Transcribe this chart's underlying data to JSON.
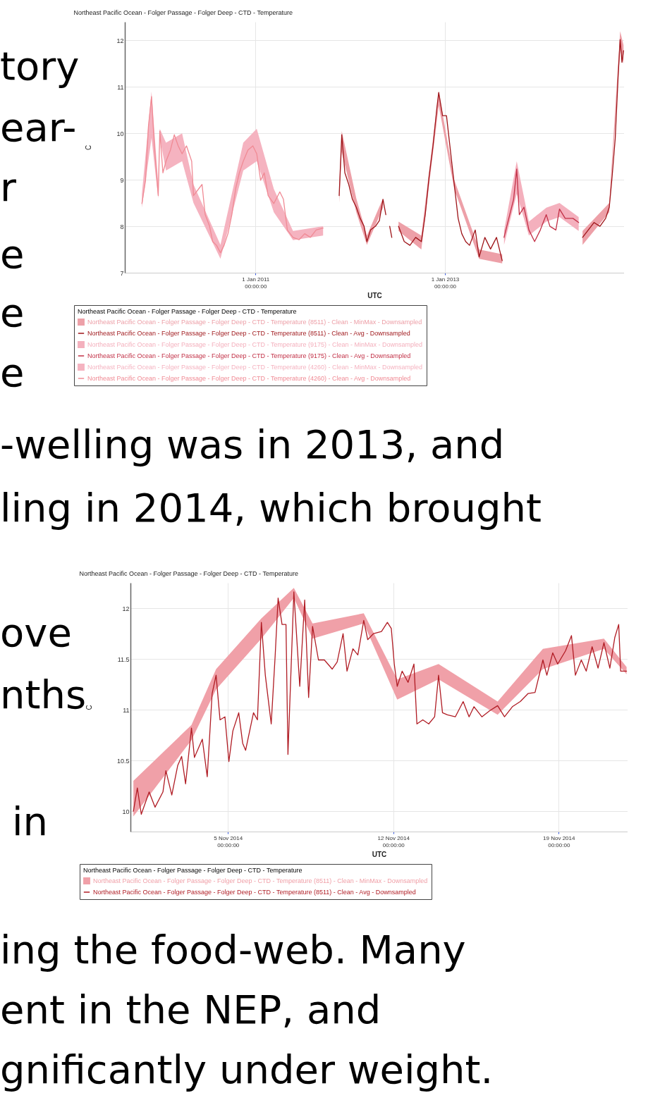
{
  "chart_data": [
    {
      "type": "line",
      "title": "Northeast Pacific Ocean - Folger Passage - Folger Deep - CTD - Temperature",
      "xlabel": "UTC",
      "ylabel": "C",
      "legend_title": "Northeast Pacific Ocean - Folger Passage - Folger Deep - CTD - Temperature",
      "xlim": [
        "2009-08-15",
        "2014-11-23"
      ],
      "xticks": [
        {
          "value": "2011-01-01",
          "label": "1 Jan 2011\n00:00:00"
        },
        {
          "value": "2013-01-01",
          "label": "1 Jan 2013\n00:00:00"
        }
      ],
      "ylim": [
        7,
        12.4
      ],
      "yticks": [
        7,
        8,
        9,
        10,
        11,
        12
      ],
      "grid": true,
      "legend": "bottom",
      "annotations": [
        "tory",
        "ear-",
        "r",
        "e",
        "e",
        "e",
        "-welling was in 2013, and",
        "ling in 2014, which brought"
      ],
      "series": [
        {
          "name": "Northeast Pacific Ocean - Folger Passage - Folger Deep - CTD - Temperature (8511) - Clean - MinMax - Downsampled",
          "type": "area",
          "color": "#eda0a8",
          "x": [
            "2011-11-20",
            "2011-11-30",
            "2012-01-25",
            "2012-03-06",
            "2012-05-07",
            "2012-05-25",
            "2012-07-06",
            "2012-10-02",
            "2012-12-08",
            "2013-02-06",
            "2013-05-13",
            "2013-08-10",
            "2013-08-14",
            "2014-06-16",
            "2014-09-27",
            "2014-11-08",
            "2014-11-21"
          ],
          "values": [
            null,
            null,
            null,
            null,
            null,
            null,
            null,
            null,
            null,
            null,
            null,
            null,
            null,
            null,
            null,
            null,
            null
          ],
          "upper": [
            8.8,
            10.05,
            8.6,
            7.8,
            8.6,
            null,
            8.1,
            7.8,
            10.9,
            9.0,
            7.5,
            7.4,
            null,
            7.9,
            8.5,
            12.2,
            11.9
          ],
          "lower": [
            8.5,
            9.6,
            8.3,
            7.6,
            8.4,
            null,
            7.9,
            7.5,
            10.6,
            8.8,
            7.3,
            7.2,
            null,
            7.6,
            8.3,
            11.8,
            11.5
          ]
        },
        {
          "name": "Northeast Pacific Ocean - Folger Passage - Folger Deep - CTD - Temperature (8511) - Clean - Avg - Downsampled",
          "type": "line",
          "color": "#9e1418",
          "x": [
            "2011-11-20",
            "2011-11-30",
            "2011-12-12",
            "2011-12-27",
            "2012-01-10",
            "2012-01-25",
            "2012-02-09",
            "2012-02-24",
            "2012-03-06",
            "2012-03-20",
            "2012-04-08",
            "2012-04-23",
            "2012-05-07",
            "2012-05-18",
            "2012-05-25",
            "2012-06-02",
            "2012-06-10",
            "2012-06-20",
            "2012-07-06",
            "2012-07-28",
            "2012-08-19",
            "2012-09-10",
            "2012-10-02",
            "2012-10-17",
            "2012-11-01",
            "2012-11-16",
            "2012-12-01",
            "2012-12-08",
            "2012-12-23",
            "2013-01-07",
            "2013-01-22",
            "2013-02-06",
            "2013-02-21",
            "2013-03-07",
            "2013-03-22",
            "2013-04-06",
            "2013-04-28",
            "2013-05-13",
            "2013-06-04",
            "2013-06-26",
            "2013-07-19",
            "2013-08-10",
            "2013-08-14",
            "2014-06-16",
            "2014-07-08",
            "2014-07-30",
            "2014-08-22",
            "2014-09-13",
            "2014-09-27",
            "2014-10-08",
            "2014-10-20",
            "2014-10-31",
            "2014-11-08",
            "2014-11-15",
            "2014-11-21"
          ],
          "values": [
            8.66,
            9.97,
            9.15,
            8.9,
            8.58,
            8.41,
            8.17,
            8.0,
            7.67,
            7.92,
            8.0,
            8.12,
            8.58,
            8.25,
            null,
            8.0,
            7.76,
            null,
            8.0,
            7.67,
            7.59,
            7.76,
            7.67,
            8.25,
            9.07,
            9.73,
            10.55,
            10.88,
            10.38,
            10.38,
            9.64,
            8.9,
            8.17,
            7.84,
            7.67,
            7.59,
            7.92,
            7.34,
            7.76,
            7.51,
            7.76,
            7.26,
            null,
            7.76,
            7.92,
            8.08,
            8.0,
            8.17,
            8.41,
            9.07,
            9.89,
            11.2,
            12.02,
            11.53,
            11.78
          ]
        },
        {
          "name": "Northeast Pacific Ocean - Folger Passage - Folger Deep - CTD - Temperature (9175) - Clean - MinMax - Downsampled",
          "type": "area",
          "color": "#f4b0bd",
          "x": [
            "2013-08-17",
            "2013-10-05",
            "2013-11-21",
            "2014-01-27",
            "2014-03-19",
            "2014-06-01"
          ],
          "values": [
            null,
            null,
            null,
            null,
            null,
            null
          ],
          "upper": [
            7.9,
            9.4,
            8.1,
            8.4,
            8.5,
            8.2
          ],
          "lower": [
            7.6,
            8.7,
            7.8,
            8.1,
            8.2,
            7.9
          ]
        },
        {
          "name": "Northeast Pacific Ocean - Folger Passage - Folger Deep - CTD - Temperature (9175) - Clean - Avg - Downsampled",
          "type": "line",
          "color": "#c23046",
          "x": [
            "2013-08-17",
            "2013-09-08",
            "2013-09-23",
            "2013-10-05",
            "2013-10-15",
            "2013-11-02",
            "2013-11-21",
            "2013-12-13",
            "2014-01-04",
            "2014-01-27",
            "2014-02-10",
            "2014-03-05",
            "2014-03-19",
            "2014-04-10",
            "2014-05-10",
            "2014-06-01"
          ],
          "values": [
            7.76,
            8.25,
            8.58,
            9.23,
            8.25,
            8.41,
            7.92,
            7.67,
            7.92,
            8.25,
            8.0,
            7.92,
            8.37,
            8.17,
            8.17,
            8.08
          ]
        },
        {
          "name": "Northeast Pacific Ocean - Folger Passage - Folger Deep - CTD - Temperature (4260) - Clean - MinMax - Downsampled",
          "type": "area",
          "color": "#f5b3c0",
          "x": [
            "2009-10-20",
            "2009-11-26",
            "2009-12-22",
            "2009-12-28",
            "2010-01-21",
            "2010-03-24",
            "2010-05-07",
            "2010-08-19",
            "2010-11-15",
            "2011-01-06",
            "2011-03-13",
            "2011-05-26",
            "2011-09-19"
          ],
          "values": [
            null,
            null,
            null,
            null,
            null,
            null,
            null,
            null,
            null,
            null,
            null,
            null,
            null
          ],
          "upper": [
            8.7,
            10.9,
            8.9,
            10.1,
            9.8,
            10.0,
            8.9,
            7.6,
            9.8,
            10.1,
            8.8,
            7.9,
            8.0
          ],
          "lower": [
            8.4,
            9.9,
            8.6,
            9.9,
            9.2,
            9.4,
            8.5,
            7.3,
            9.2,
            9.4,
            8.3,
            7.7,
            7.8
          ]
        },
        {
          "name": "Northeast Pacific Ocean - Folger Passage - Folger Deep - CTD - Temperature (4260) - Clean - Avg - Downsampled",
          "type": "line",
          "color": "#f08a94",
          "x": [
            "2009-10-20",
            "2009-11-03",
            "2009-11-14",
            "2009-11-26",
            "2009-12-07",
            "2009-12-22",
            "2009-12-28",
            "2010-01-09",
            "2010-01-21",
            "2010-02-07",
            "2010-02-22",
            "2010-03-09",
            "2010-03-24",
            "2010-04-10",
            "2010-04-30",
            "2010-05-07",
            "2010-05-29",
            "2010-06-09",
            "2010-06-21",
            "2010-07-08",
            "2010-07-20",
            "2010-08-04",
            "2010-08-19",
            "2010-09-02",
            "2010-09-17",
            "2010-10-02",
            "2010-10-17",
            "2010-10-31",
            "2010-11-15",
            "2010-12-03",
            "2010-12-22",
            "2011-01-06",
            "2011-01-21",
            "2011-02-04",
            "2011-02-19",
            "2011-03-13",
            "2011-04-05",
            "2011-04-19",
            "2011-05-04",
            "2011-05-26",
            "2011-06-18",
            "2011-07-10",
            "2011-08-01",
            "2011-08-23",
            "2011-09-19"
          ],
          "values": [
            8.49,
            8.99,
            10.14,
            10.79,
            9.73,
            8.66,
            10.05,
            9.15,
            9.4,
            9.64,
            9.97,
            9.73,
            9.56,
            9.73,
            9.4,
            8.66,
            8.82,
            8.9,
            8.25,
            8.0,
            7.67,
            7.59,
            7.43,
            7.59,
            7.84,
            8.25,
            8.82,
            9.15,
            9.4,
            9.64,
            9.73,
            9.56,
            8.99,
            9.15,
            8.66,
            8.49,
            8.74,
            8.58,
            7.92,
            7.76,
            7.71,
            7.84,
            7.76,
            7.92,
            7.96
          ]
        }
      ]
    },
    {
      "type": "line",
      "title": "Northeast Pacific Ocean - Folger Passage - Folger Deep - CTD - Temperature",
      "xlabel": "UTC",
      "ylabel": "C",
      "legend_title": "Northeast Pacific Ocean - Folger Passage - Folger Deep - CTD - Temperature",
      "xlim": [
        "2014-10-31T21:00",
        "2014-11-21T22:00"
      ],
      "xticks": [
        {
          "value": "2014-11-05",
          "label": "5 Nov 2014\n00:00:00"
        },
        {
          "value": "2014-11-12",
          "label": "12 Nov 2014\n00:00:00"
        },
        {
          "value": "2014-11-19",
          "label": "19 Nov 2014\n00:00:00"
        }
      ],
      "ylim": [
        9.8,
        12.25
      ],
      "yticks": [
        10,
        10.5,
        11,
        11.5,
        12
      ],
      "grid": true,
      "legend": "bottom",
      "annotations": [
        "ove",
        "nths",
        "in",
        "ing the food-web. Many",
        "ent in the NEP, and",
        "gnificantly under weight."
      ],
      "series": [
        {
          "name": "Northeast Pacific Ocean - Folger Passage - Folger Deep - CTD - Temperature (8511) - Clean - MinMax - Downsampled",
          "type": "area",
          "color": "#f0a0a8",
          "x": [
            "2014-11-01T00:00",
            "2014-11-03T11:00",
            "2014-11-04T12:00",
            "2014-11-06T10:00",
            "2014-11-07T19:00",
            "2014-11-08T14:00",
            "2014-11-10T18:00",
            "2014-11-12T04:00",
            "2014-11-13T22:00",
            "2014-11-16T10:00",
            "2014-11-18T08:00",
            "2014-11-20T22:00",
            "2014-11-21T21:00"
          ],
          "values": [
            null,
            null,
            null,
            null,
            null,
            null,
            null,
            null,
            null,
            null,
            null,
            null,
            null
          ],
          "upper": [
            10.3,
            10.85,
            11.4,
            11.9,
            12.2,
            11.85,
            11.95,
            11.3,
            11.45,
            11.08,
            11.6,
            11.7,
            11.42
          ],
          "lower": [
            9.95,
            10.7,
            11.2,
            11.7,
            12.1,
            11.7,
            11.85,
            11.1,
            11.3,
            10.95,
            11.4,
            11.6,
            11.35
          ]
        },
        {
          "name": "Northeast Pacific Ocean - Folger Passage - Folger Deep - CTD - Temperature (8511) - Clean - Avg - Downsampled",
          "type": "line",
          "color": "#b01c24",
          "x": [
            "2014-11-01T00:00",
            "2014-11-01T04:00",
            "2014-11-01T08:00",
            "2014-11-01T16:00",
            "2014-11-01T22:00",
            "2014-11-02T06:00",
            "2014-11-02T09:00",
            "2014-11-02T15:00",
            "2014-11-02T21:00",
            "2014-11-03T01:00",
            "2014-11-03T05:00",
            "2014-11-03T11:00",
            "2014-11-03T14:00",
            "2014-11-03T22:00",
            "2014-11-04T03:00",
            "2014-11-04T08:00",
            "2014-11-04T12:00",
            "2014-11-04T16:00",
            "2014-11-04T21:00",
            "2014-11-05T01:00",
            "2014-11-05T05:00",
            "2014-11-05T11:00",
            "2014-11-05T15:00",
            "2014-11-05T18:00",
            "2014-11-06T02:00",
            "2014-11-06T06:00",
            "2014-11-06T10:00",
            "2014-11-06T14:00",
            "2014-11-06T20:00",
            "2014-11-07T00:00",
            "2014-11-07T03:00",
            "2014-11-07T07:00",
            "2014-11-07T11:00",
            "2014-11-07T13:00",
            "2014-11-07T19:00",
            "2014-11-08T01:00",
            "2014-11-08T06:00",
            "2014-11-08T10:00",
            "2014-11-08T14:00",
            "2014-11-08T20:00",
            "2014-11-09T02:00",
            "2014-11-09T10:00",
            "2014-11-09T15:00",
            "2014-11-09T21:00",
            "2014-11-10T01:00",
            "2014-11-10T07:00",
            "2014-11-10T12:00",
            "2014-11-10T18:00",
            "2014-11-10T22:00",
            "2014-11-11T04:00",
            "2014-11-11T12:00",
            "2014-11-11T18:00",
            "2014-11-11T22:00",
            "2014-11-12T01:00",
            "2014-11-12T04:00",
            "2014-11-12T09:00",
            "2014-11-12T15:00",
            "2014-11-12T21:00",
            "2014-11-13T00:00",
            "2014-11-13T06:00",
            "2014-11-13T12:00",
            "2014-11-13T18:00",
            "2014-11-13T22:00",
            "2014-11-14T02:00",
            "2014-11-14T07:00",
            "2014-11-14T15:00",
            "2014-11-14T23:00",
            "2014-11-15T05:00",
            "2014-11-15T10:00",
            "2014-11-15T18:00",
            "2014-11-16T02:00",
            "2014-11-16T10:00",
            "2014-11-16T17:00",
            "2014-11-17T01:00",
            "2014-11-17T09:00",
            "2014-11-17T17:00",
            "2014-11-18T00:00",
            "2014-11-18T08:00",
            "2014-11-18T12:00",
            "2014-11-18T18:00",
            "2014-11-18T23:00",
            "2014-11-19T07:00",
            "2014-11-19T13:00",
            "2014-11-19T17:00",
            "2014-11-19T23:00",
            "2014-11-20T04:00",
            "2014-11-20T10:00",
            "2014-11-20T16:00",
            "2014-11-20T22:00",
            "2014-11-21T04:00",
            "2014-11-21T09:00",
            "2014-11-21T13:00",
            "2014-11-21T15:00",
            "2014-11-21T21:00"
          ],
          "values": [
            10.0,
            10.23,
            9.97,
            10.19,
            10.04,
            10.19,
            10.4,
            10.16,
            10.45,
            10.54,
            10.27,
            10.82,
            10.53,
            10.71,
            10.34,
            11.16,
            11.34,
            10.9,
            10.93,
            10.49,
            10.79,
            10.97,
            10.67,
            10.6,
            10.97,
            10.9,
            11.86,
            11.34,
            10.86,
            11.53,
            12.1,
            11.84,
            11.84,
            10.56,
            12.16,
            11.23,
            12.08,
            11.12,
            11.82,
            11.49,
            11.49,
            11.4,
            11.47,
            11.75,
            11.38,
            11.6,
            11.54,
            11.88,
            11.69,
            11.75,
            11.77,
            11.86,
            11.8,
            11.45,
            11.23,
            11.38,
            11.27,
            11.45,
            10.86,
            10.9,
            10.86,
            10.93,
            11.34,
            10.97,
            10.95,
            10.93,
            11.08,
            10.93,
            11.03,
            10.93,
            10.99,
            11.04,
            10.93,
            11.03,
            11.08,
            11.16,
            11.17,
            11.49,
            11.34,
            11.56,
            11.45,
            11.58,
            11.73,
            11.34,
            11.49,
            11.38,
            11.62,
            11.41,
            11.66,
            11.41,
            11.71,
            11.84,
            11.38,
            11.38
          ]
        }
      ]
    }
  ]
}
